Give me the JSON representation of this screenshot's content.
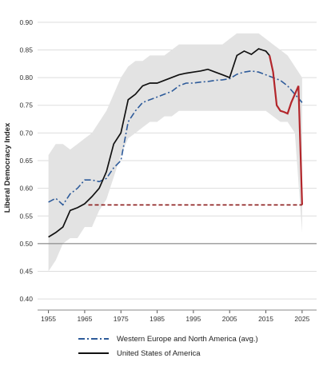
{
  "chart_data": {
    "type": "line",
    "title": "",
    "xlabel": "",
    "ylabel": "Liberal Democracy Index",
    "xlim": [
      1952,
      2029
    ],
    "ylim": [
      0.38,
      0.92
    ],
    "x_ticks": [
      1955,
      1965,
      1975,
      1985,
      1995,
      2005,
      2015,
      2025
    ],
    "x_tick_labels": [
      "1955",
      "1965",
      "1975",
      "1985",
      "1995",
      "2005",
      "2015",
      "2025"
    ],
    "y_ticks": [
      0.4,
      0.45,
      0.5,
      0.55,
      0.6,
      0.65,
      0.7,
      0.75,
      0.8,
      0.85,
      0.9
    ],
    "y_tick_labels": [
      "0.40",
      "0.45",
      "0.50",
      "0.55",
      "0.60",
      "0.65",
      "0.70",
      "0.75",
      "0.80",
      "0.85",
      "0.90"
    ],
    "grid": true,
    "reference_line": 0.5,
    "legend_position": "bottom",
    "colors": {
      "usa": "#111111",
      "usa_decline": "#b3262b",
      "projection": "#8b1a1a",
      "weur_avg": "#2e5b9a",
      "band": "#e3e3e3",
      "grid": "#dddddd",
      "reference": "#777777"
    },
    "band": {
      "x": [
        1955,
        1957,
        1959,
        1961,
        1963,
        1965,
        1967,
        1969,
        1971,
        1973,
        1975,
        1977,
        1979,
        1981,
        1983,
        1985,
        1987,
        1989,
        1991,
        1993,
        1995,
        1997,
        1999,
        2001,
        2003,
        2005,
        2007,
        2009,
        2011,
        2013,
        2015,
        2017,
        2019,
        2021,
        2023,
        2025
      ],
      "upper": [
        0.66,
        0.68,
        0.68,
        0.67,
        0.68,
        0.69,
        0.7,
        0.72,
        0.74,
        0.77,
        0.8,
        0.82,
        0.83,
        0.83,
        0.84,
        0.84,
        0.84,
        0.85,
        0.86,
        0.86,
        0.86,
        0.86,
        0.86,
        0.86,
        0.86,
        0.87,
        0.88,
        0.88,
        0.88,
        0.88,
        0.87,
        0.86,
        0.85,
        0.84,
        0.82,
        0.8
      ],
      "lower": [
        0.45,
        0.47,
        0.5,
        0.51,
        0.51,
        0.53,
        0.53,
        0.56,
        0.58,
        0.62,
        0.66,
        0.69,
        0.7,
        0.71,
        0.72,
        0.72,
        0.73,
        0.73,
        0.74,
        0.74,
        0.74,
        0.74,
        0.74,
        0.74,
        0.74,
        0.74,
        0.74,
        0.74,
        0.74,
        0.74,
        0.74,
        0.73,
        0.72,
        0.72,
        0.7,
        0.52
      ]
    },
    "series": [
      {
        "name": "Western Europe and North America (avg.)",
        "style": "dash-dot",
        "x": [
          1955,
          1957,
          1959,
          1961,
          1963,
          1965,
          1967,
          1969,
          1971,
          1973,
          1975,
          1977,
          1979,
          1981,
          1983,
          1985,
          1987,
          1989,
          1991,
          1993,
          1995,
          1997,
          1999,
          2001,
          2003,
          2005,
          2007,
          2009,
          2011,
          2013,
          2015,
          2017,
          2019,
          2021,
          2023,
          2025
        ],
        "values": [
          0.575,
          0.582,
          0.57,
          0.59,
          0.6,
          0.615,
          0.615,
          0.612,
          0.618,
          0.637,
          0.65,
          0.72,
          0.74,
          0.755,
          0.76,
          0.765,
          0.77,
          0.775,
          0.785,
          0.79,
          0.79,
          0.792,
          0.793,
          0.795,
          0.796,
          0.798,
          0.806,
          0.81,
          0.812,
          0.81,
          0.805,
          0.8,
          0.795,
          0.785,
          0.77,
          0.755
        ]
      },
      {
        "name": "United States of America",
        "x": [
          1955,
          1957,
          1959,
          1961,
          1963,
          1965,
          1967,
          1969,
          1971,
          1973,
          1975,
          1977,
          1979,
          1981,
          1983,
          1985,
          1987,
          1989,
          1991,
          1993,
          1995,
          1997,
          1999,
          2001,
          2003,
          2005,
          2007,
          2009,
          2011,
          2013,
          2014,
          2015,
          2016
        ],
        "values": [
          0.512,
          0.52,
          0.53,
          0.56,
          0.565,
          0.572,
          0.585,
          0.6,
          0.63,
          0.68,
          0.7,
          0.76,
          0.77,
          0.785,
          0.79,
          0.79,
          0.795,
          0.8,
          0.805,
          0.808,
          0.81,
          0.812,
          0.815,
          0.81,
          0.805,
          0.8,
          0.84,
          0.848,
          0.842,
          0.852,
          0.85,
          0.848,
          0.84
        ]
      }
    ],
    "usa_decline": {
      "x": [
        2016,
        2017,
        2018,
        2019,
        2020,
        2021,
        2022,
        2023,
        2024,
        2025
      ],
      "values": [
        0.84,
        0.81,
        0.75,
        0.74,
        0.738,
        0.735,
        0.755,
        0.77,
        0.785,
        0.57
      ]
    },
    "projection": {
      "x": [
        1966,
        2025
      ],
      "values": [
        0.57,
        0.57
      ]
    }
  },
  "legend": {
    "items": [
      {
        "label": "Western Europe and North America (avg.)"
      },
      {
        "label": "United States of America"
      }
    ]
  }
}
